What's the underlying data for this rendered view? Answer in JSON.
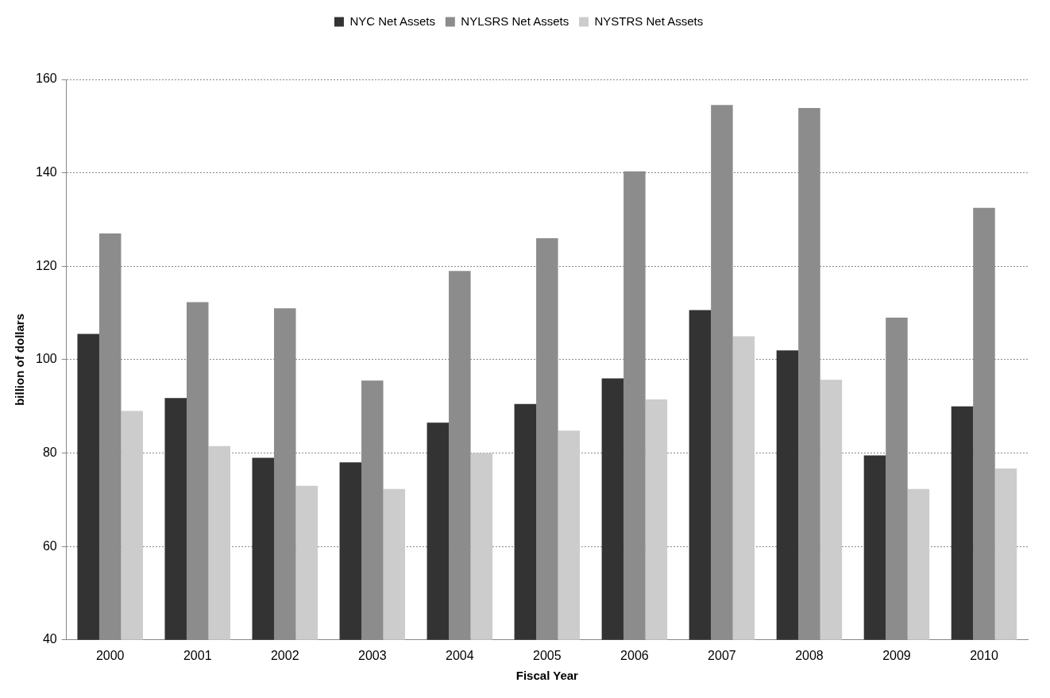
{
  "chart_data": {
    "type": "bar",
    "xlabel": "Fiscal Year",
    "ylabel": "billion of dollars",
    "categories": [
      "2000",
      "2001",
      "2002",
      "2003",
      "2004",
      "2005",
      "2006",
      "2007",
      "2008",
      "2009",
      "2010"
    ],
    "series": [
      {
        "name": "NYC Net Assets",
        "color": "#333333",
        "values": [
          105.5,
          91.8,
          79,
          78,
          86.5,
          90.5,
          96,
          110.6,
          102,
          79.5,
          90
        ]
      },
      {
        "name": "NYLSRS Net Assets",
        "color": "#8c8c8c",
        "values": [
          127,
          112.3,
          111,
          95.5,
          119,
          126,
          140.3,
          154.5,
          153.9,
          109,
          132.5
        ]
      },
      {
        "name": "NYSTRS Net Assets",
        "color": "#cccccc",
        "values": [
          89,
          81.5,
          73,
          72.3,
          80,
          84.8,
          91.5,
          105,
          95.7,
          72.3,
          76.7
        ]
      }
    ],
    "ylim": [
      40,
      160
    ],
    "yticks": [
      40,
      60,
      80,
      100,
      120,
      140,
      160
    ],
    "grid": "y",
    "legend": "top"
  }
}
